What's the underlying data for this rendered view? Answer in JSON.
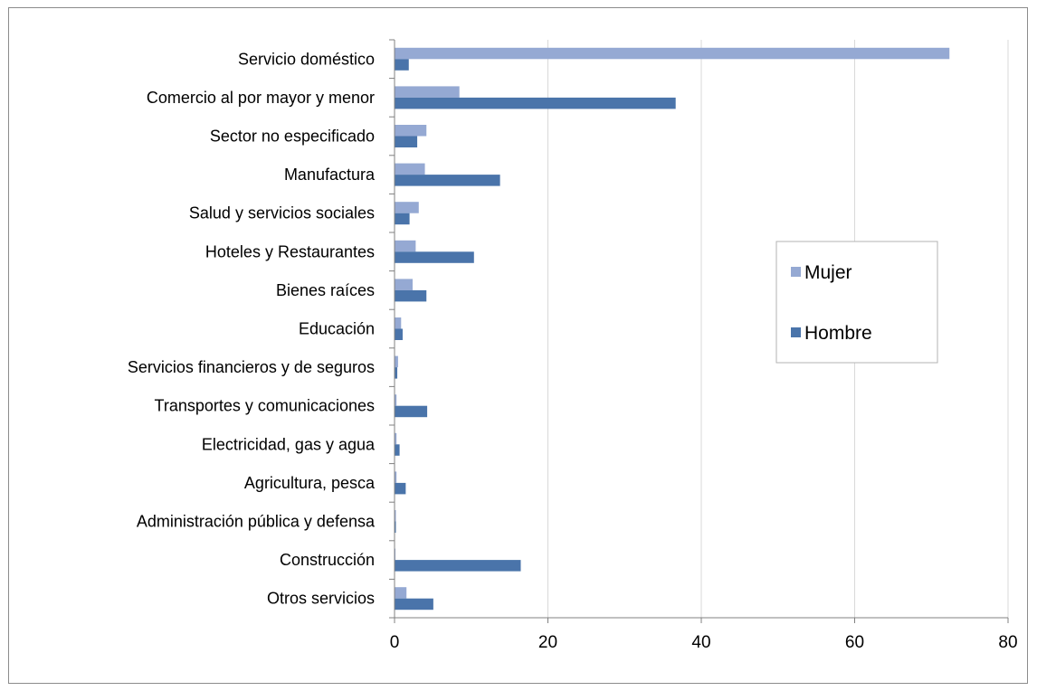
{
  "chart_data": {
    "type": "bar",
    "orientation": "horizontal",
    "title": "",
    "xlabel": "",
    "ylabel": "",
    "xlim": [
      0,
      80
    ],
    "x_ticks": [
      0,
      20,
      40,
      60,
      80
    ],
    "grid": true,
    "legend_position": "right",
    "categories": [
      "Servicio doméstico",
      "Comercio al por mayor y menor",
      "Sector no especificado",
      "Manufactura",
      "Salud y servicios sociales",
      "Hoteles y Restaurantes",
      "Bienes raíces",
      "Educación",
      "Servicios financieros y de seguros",
      "Transportes y comunicaciones",
      "Electricidad, gas y agua",
      "Agricultura, pesca",
      "Administración pública y defensa",
      "Construcción",
      "Otros servicios"
    ],
    "series": [
      {
        "name": "Mujer",
        "color": "#95A9D3",
        "values": [
          72.3,
          8.4,
          4.1,
          3.9,
          3.1,
          2.7,
          2.3,
          0.8,
          0.4,
          0.2,
          0.2,
          0.2,
          0.1,
          0.0,
          1.5
        ]
      },
      {
        "name": "Hombre",
        "color": "#4A74AA",
        "values": [
          1.8,
          36.6,
          2.9,
          13.7,
          1.9,
          10.3,
          4.1,
          1.0,
          0.3,
          4.2,
          0.6,
          1.4,
          0.1,
          16.4,
          5.0
        ]
      }
    ]
  }
}
